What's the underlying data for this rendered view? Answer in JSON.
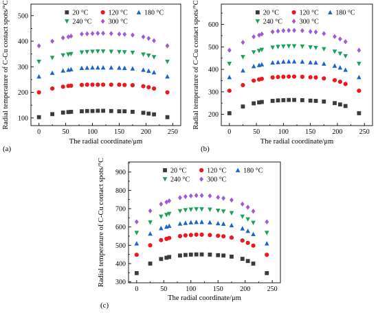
{
  "chart_data": [
    {
      "type": "scatter",
      "panel_label": "(a)",
      "xlabel": "The radial coordinate/μm",
      "ylabel": "Radial temperature of C-Cu contact spots/°C",
      "xlim": [
        -15,
        265
      ],
      "ylim": [
        70,
        545
      ],
      "xticks": [
        0,
        50,
        100,
        150,
        200,
        250
      ],
      "yticks": [
        100,
        200,
        300,
        400,
        500
      ],
      "grid": false,
      "legend_position": "top",
      "x": [
        0,
        25,
        45,
        55,
        60,
        80,
        90,
        100,
        110,
        120,
        135,
        150,
        160,
        175,
        195,
        205,
        215,
        240
      ],
      "series": [
        {
          "name": "20 °C",
          "marker": "square",
          "color": "#3b3b3b",
          "values": [
            103,
            115,
            121,
            123,
            124,
            126,
            127,
            127,
            128,
            128,
            127,
            126,
            126,
            124,
            120,
            117,
            114,
            103
          ]
        },
        {
          "name": "120 °C",
          "marker": "circle",
          "color": "#e8191f",
          "values": [
            200,
            215,
            222,
            225,
            226,
            229,
            230,
            230,
            230,
            230,
            230,
            230,
            229,
            228,
            224,
            220,
            215,
            200
          ]
        },
        {
          "name": "180 °C",
          "marker": "triangle-up",
          "color": "#1c64c8",
          "values": [
            262,
            276,
            285,
            288,
            290,
            295,
            296,
            297,
            297,
            297,
            297,
            296,
            295,
            293,
            288,
            284,
            278,
            262
          ]
        },
        {
          "name": "240 °C",
          "marker": "triangle-down",
          "color": "#1ea05a",
          "values": [
            320,
            335,
            345,
            348,
            350,
            356,
            358,
            359,
            360,
            360,
            359,
            358,
            357,
            355,
            348,
            344,
            338,
            320
          ]
        },
        {
          "name": "300 °C",
          "marker": "diamond",
          "color": "#a05ad2",
          "values": [
            382,
            400,
            413,
            417,
            420,
            428,
            429,
            430,
            431,
            431,
            430,
            428,
            427,
            424,
            417,
            411,
            402,
            382
          ]
        }
      ]
    },
    {
      "type": "scatter",
      "panel_label": "(b)",
      "xlabel": "The radial coordinate/μm",
      "ylabel": "Radial temperature of C-Cu contact spots/°C",
      "xlim": [
        -15,
        265
      ],
      "ylim": [
        150,
        690
      ],
      "xticks": [
        0,
        50,
        100,
        150,
        200,
        250
      ],
      "yticks": [
        200,
        300,
        400,
        500,
        600
      ],
      "grid": false,
      "legend_position": "top",
      "x": [
        0,
        25,
        45,
        55,
        60,
        80,
        90,
        100,
        110,
        120,
        135,
        150,
        160,
        175,
        195,
        205,
        215,
        240
      ],
      "series": [
        {
          "name": "20 °C",
          "marker": "square",
          "color": "#3b3b3b",
          "values": [
            205,
            235,
            249,
            253,
            255,
            260,
            262,
            263,
            264,
            264,
            263,
            261,
            260,
            257,
            250,
            244,
            237,
            205
          ]
        },
        {
          "name": "120 °C",
          "marker": "circle",
          "color": "#e8191f",
          "values": [
            305,
            330,
            350,
            355,
            358,
            364,
            366,
            367,
            368,
            368,
            367,
            365,
            364,
            360,
            352,
            345,
            335,
            305
          ]
        },
        {
          "name": "180 °C",
          "marker": "triangle-up",
          "color": "#1c64c8",
          "values": [
            365,
            395,
            414,
            419,
            422,
            430,
            432,
            434,
            435,
            435,
            434,
            431,
            430,
            425,
            416,
            408,
            398,
            365
          ]
        },
        {
          "name": "240 °C",
          "marker": "triangle-down",
          "color": "#1ea05a",
          "values": [
            425,
            455,
            476,
            482,
            487,
            497,
            500,
            502,
            503,
            503,
            502,
            498,
            496,
            490,
            479,
            470,
            459,
            425
          ]
        },
        {
          "name": "300 °C",
          "marker": "diamond",
          "color": "#a05ad2",
          "values": [
            485,
            520,
            545,
            552,
            557,
            567,
            570,
            572,
            573,
            573,
            572,
            568,
            566,
            559,
            546,
            535,
            523,
            485
          ]
        }
      ]
    },
    {
      "type": "scatter",
      "panel_label": "(c)",
      "xlabel": "The radial coordinate/μm",
      "ylabel": "Radial temperature of C-Cu contact spots/°C",
      "xlim": [
        -15,
        265
      ],
      "ylim": [
        295,
        955
      ],
      "xticks": [
        0,
        50,
        100,
        150,
        200,
        250
      ],
      "yticks": [
        300,
        400,
        500,
        600,
        700,
        800,
        900
      ],
      "grid": false,
      "legend_position": "top",
      "x": [
        0,
        25,
        45,
        55,
        60,
        80,
        90,
        100,
        110,
        120,
        135,
        150,
        160,
        175,
        195,
        205,
        215,
        240
      ],
      "series": [
        {
          "name": "20 °C",
          "marker": "square",
          "color": "#3b3b3b",
          "values": [
            348,
            400,
            425,
            432,
            436,
            444,
            447,
            449,
            450,
            450,
            449,
            446,
            444,
            438,
            426,
            414,
            400,
            348
          ]
        },
        {
          "name": "120 °C",
          "marker": "circle",
          "color": "#e8191f",
          "values": [
            448,
            500,
            528,
            535,
            540,
            550,
            554,
            556,
            558,
            558,
            556,
            552,
            549,
            542,
            526,
            513,
            498,
            448
          ]
        },
        {
          "name": "180 °C",
          "marker": "triangle-up",
          "color": "#1c64c8",
          "values": [
            510,
            563,
            593,
            601,
            606,
            618,
            622,
            625,
            627,
            627,
            625,
            620,
            617,
            609,
            592,
            578,
            561,
            510
          ]
        },
        {
          "name": "240 °C",
          "marker": "triangle-down",
          "color": "#1ea05a",
          "values": [
            568,
            625,
            657,
            666,
            672,
            687,
            692,
            695,
            697,
            697,
            695,
            689,
            685,
            676,
            657,
            642,
            623,
            568
          ]
        },
        {
          "name": "300 °C",
          "marker": "diamond",
          "color": "#a05ad2",
          "values": [
            628,
            688,
            725,
            736,
            743,
            760,
            766,
            770,
            772,
            772,
            770,
            762,
            757,
            747,
            725,
            708,
            686,
            628
          ]
        }
      ]
    }
  ]
}
